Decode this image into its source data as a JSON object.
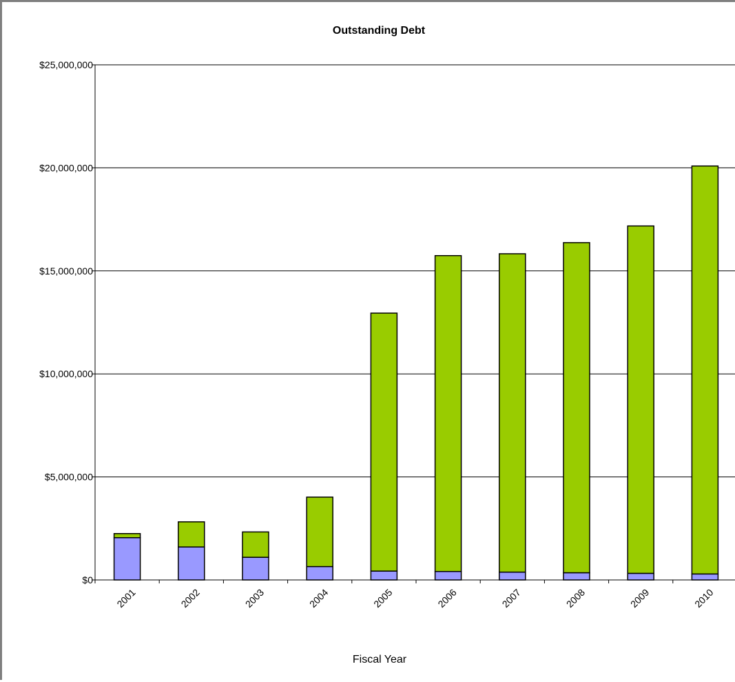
{
  "chart_data": {
    "type": "bar",
    "stacked": true,
    "title": "Outstanding Debt",
    "xlabel": "Fiscal Year",
    "ylabel": "",
    "categories": [
      "2001",
      "2002",
      "2003",
      "2004",
      "2005",
      "2006",
      "2007",
      "2008",
      "2009",
      "2010"
    ],
    "series": [
      {
        "color": "#9999ff",
        "values": [
          2050000,
          1600000,
          1100000,
          650000,
          430000,
          410000,
          380000,
          350000,
          320000,
          290000
        ]
      },
      {
        "color": "#99cc00",
        "values": [
          200000,
          1220000,
          1230000,
          3370000,
          12520000,
          15330000,
          15450000,
          16020000,
          16860000,
          19800000
        ]
      }
    ],
    "ylim": [
      0,
      25000000
    ],
    "yticks": [
      0,
      5000000,
      10000000,
      15000000,
      20000000,
      25000000
    ],
    "ytick_labels": [
      "$0",
      "$5,000,000",
      "$10,000,000",
      "$15,000,000",
      "$20,000,000",
      "$25,000,000"
    ],
    "grid": true,
    "legend": "none"
  }
}
